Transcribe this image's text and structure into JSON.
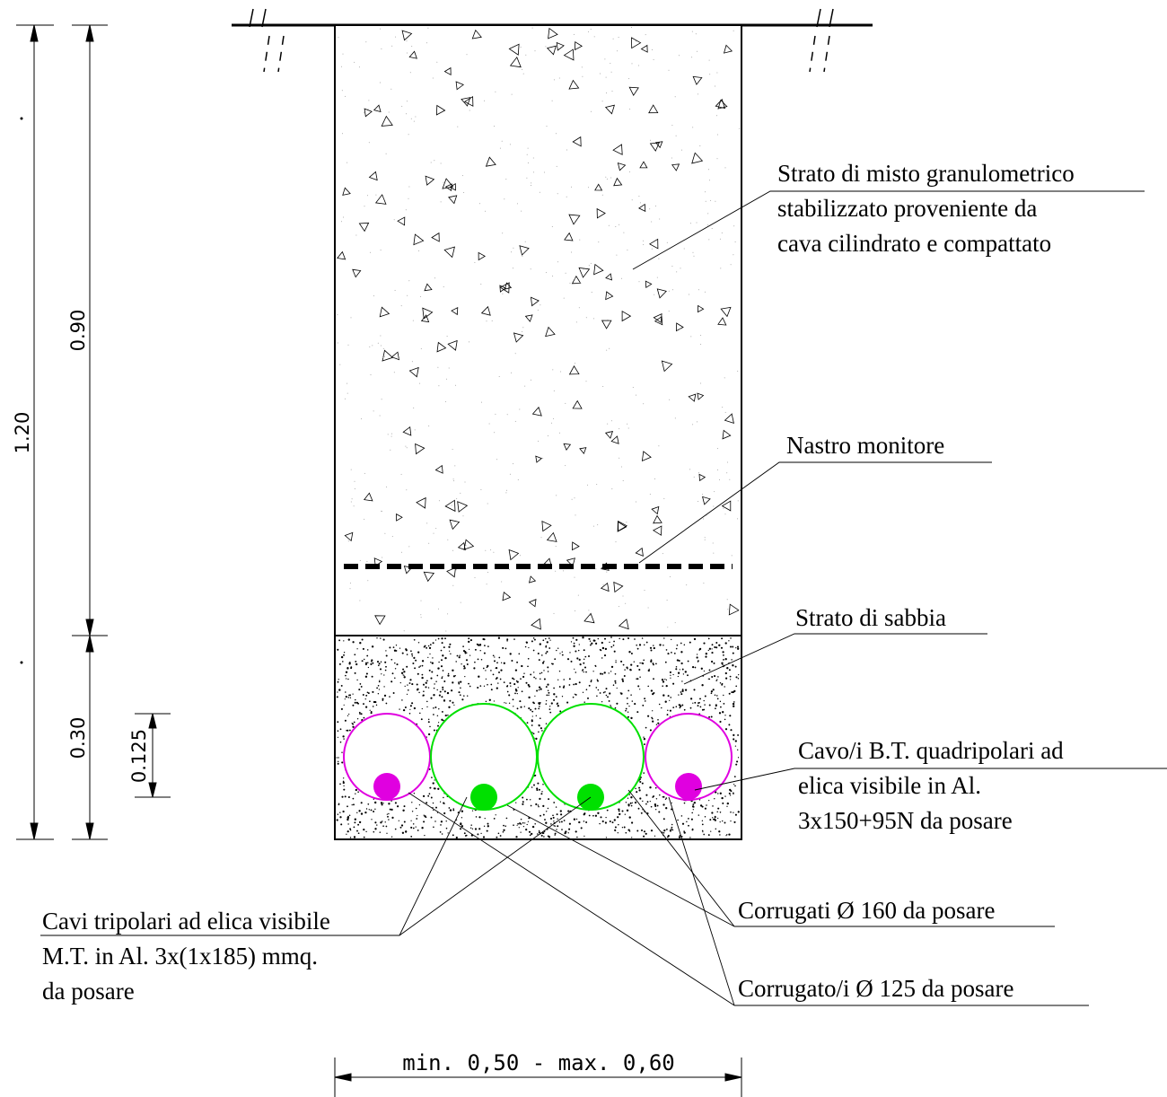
{
  "labels": {
    "gravel_layer": [
      "Strato di misto granulometrico",
      "stabilizzato proveniente da",
      "cava cilindrato e compattato"
    ],
    "warning_tape": "Nastro monitore",
    "sand_layer": "Strato di sabbia",
    "lv_cables": [
      "Cavo/i B.T. quadripolari ad",
      "elica visibile in Al.",
      "3x150+95N da posare"
    ],
    "mv_cables": [
      "Cavi tripolari ad elica visibile",
      "M.T. in Al. 3x(1x185) mmq.",
      "da posare"
    ],
    "conduit_160": "Corrugati Ø 160 da posare",
    "conduit_125": "Corrugato/i Ø 125 da posare"
  },
  "dimensions": {
    "total_depth": "1.20",
    "fill_depth": "0.90",
    "sand_depth": "0.30",
    "conduit_height": "0.125",
    "trench_width": "min. 0,50 - max. 0,60"
  },
  "colors": {
    "conduit_160": "#00e000",
    "conduit_125": "#e000e0",
    "mv_cable": "#00e000",
    "lv_cable": "#e000e0"
  }
}
